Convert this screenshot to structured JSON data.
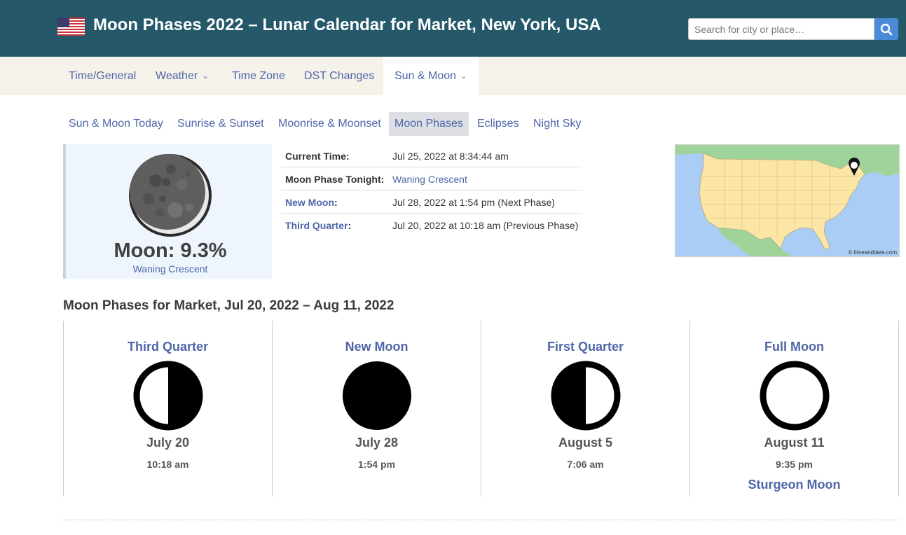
{
  "header": {
    "title": "Moon Phases 2022 – Lunar Calendar for Market, New York, USA",
    "search_placeholder": "Search for city or place…"
  },
  "main_nav": [
    {
      "label": "Time/General"
    },
    {
      "label": "Weather"
    },
    {
      "label": "Time Zone"
    },
    {
      "label": "DST Changes"
    },
    {
      "label": "Sun & Moon"
    }
  ],
  "sub_nav": [
    {
      "label": "Sun & Moon Today"
    },
    {
      "label": "Sunrise & Sunset"
    },
    {
      "label": "Moonrise & Moonset"
    },
    {
      "label": "Moon Phases"
    },
    {
      "label": "Eclipses"
    },
    {
      "label": "Night Sky"
    }
  ],
  "moon_summary": {
    "percent_text": "Moon: 9.3%",
    "phase_name": "Waning Crescent"
  },
  "info": {
    "current_time_label": "Current Time:",
    "current_time_value": "Jul 25, 2022 at 8:34:44 am",
    "phase_tonight_label": "Moon Phase Tonight:",
    "phase_tonight_value": "Waning Crescent",
    "new_moon_label": "New Moon",
    "new_moon_value": "Jul 28, 2022 at 1:54 pm (Next Phase)",
    "third_quarter_label": "Third Quarter",
    "third_quarter_value": "Jul 20, 2022 at 10:18 am (Previous Phase)"
  },
  "map": {
    "copyright": "© timeanddate.com"
  },
  "phases_section": {
    "title": "Moon Phases for Market, Jul 20, 2022 – Aug 11, 2022",
    "phases": [
      {
        "name": "Third Quarter",
        "date": "July 20",
        "time": "10:18 am",
        "extra": "",
        "icon": "third-quarter-moon-icon"
      },
      {
        "name": "New Moon",
        "date": "July 28",
        "time": "1:54 pm",
        "extra": "",
        "icon": "new-moon-icon"
      },
      {
        "name": "First Quarter",
        "date": "August 5",
        "time": "7:06 am",
        "extra": "",
        "icon": "first-quarter-moon-icon"
      },
      {
        "name": "Full Moon",
        "date": "August 11",
        "time": "9:35 pm",
        "extra": "Sturgeon Moon",
        "icon": "full-moon-icon"
      }
    ]
  },
  "colors": {
    "header_bg": "#25596a",
    "link": "#4e66a8",
    "nav_bg": "#f5f2ea",
    "search_button": "#4a8ad6"
  }
}
